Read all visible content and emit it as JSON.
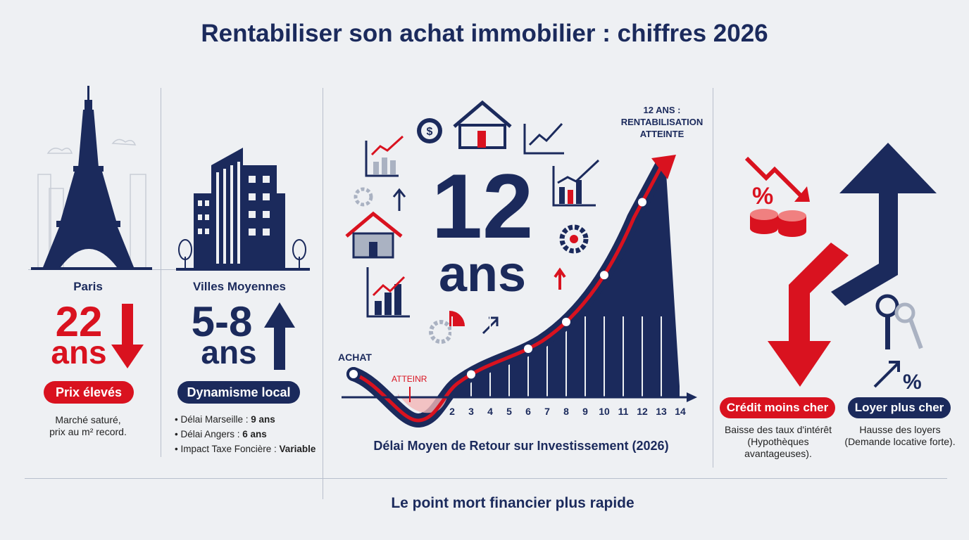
{
  "title": "Rentabiliser son achat immobilier : chiffres 2026",
  "colors": {
    "navy": "#1b2a5c",
    "red": "#d9121f",
    "background": "#eef0f3"
  },
  "paris": {
    "city": "Paris",
    "value": "22",
    "unit": "ans",
    "trend_icon": "arrow-down-icon",
    "badge": "Prix élevés",
    "desc_line1": "Marché saturé,",
    "desc_line2": "prix au m² record."
  },
  "villes": {
    "city": "Villes Moyennes",
    "value": "5-8",
    "unit": "ans",
    "trend_icon": "arrow-up-icon",
    "badge": "Dynamisme local",
    "bullets": [
      {
        "label": "Délai Marseille : ",
        "value": "9 ans"
      },
      {
        "label": "Délai Angers : ",
        "value": "6 ans"
      },
      {
        "label": "Impact Taxe Foncière : ",
        "value": "Variable"
      }
    ]
  },
  "center": {
    "big_value": "12",
    "big_unit": "ans",
    "icons": [
      "bar-chart-icon",
      "dollar-coin-icon",
      "house-icon",
      "trend-chart-icon",
      "gear-icon",
      "pie-chart-icon",
      "arrow-up-icon"
    ]
  },
  "chart_data": {
    "type": "line",
    "x_ticks": [
      2,
      3,
      4,
      5,
      6,
      7,
      8,
      9,
      10,
      11,
      12,
      13,
      14
    ],
    "marked_years": [
      3,
      6,
      8,
      10,
      12
    ],
    "start_label": "ACHAT",
    "dip_label": "ATTEINR",
    "end_annotation": "12 ANS : RENTABILISATION ATTEINTE",
    "caption": "Délai Moyen de Retour sur Investissement (2026)"
  },
  "right": {
    "credit": {
      "badge": "Crédit moins cher",
      "desc_line1": "Baisse des taux d'intérêt",
      "desc_line2": "(Hypothèques",
      "desc_line3": "avantageuses)."
    },
    "loyer": {
      "badge": "Loyer plus cher",
      "desc_line1": "Hausse des loyers",
      "desc_line2": "(Demande locative forte)."
    },
    "icons": [
      "percent-icon",
      "coins-icon",
      "keys-icon",
      "arrow-down-icon",
      "arrow-up-icon"
    ]
  },
  "footer": "Le point mort financier plus rapide"
}
